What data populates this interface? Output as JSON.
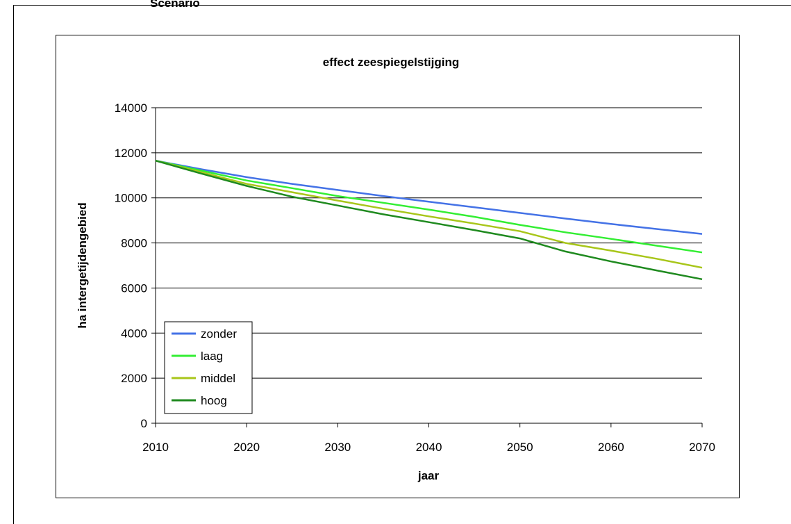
{
  "page": {
    "cut_heading": "Scenario"
  },
  "chart_data": {
    "type": "line",
    "title": "effect zeespiegelstijging",
    "xlabel": "jaar",
    "ylabel": "ha intergetijdengebied",
    "xlim": [
      2010,
      2070
    ],
    "ylim": [
      0,
      14000
    ],
    "x_ticks": [
      "2010",
      "2020",
      "2030",
      "2040",
      "2050",
      "2060",
      "2070"
    ],
    "y_ticks": [
      "0",
      "2000",
      "4000",
      "6000",
      "8000",
      "10000",
      "12000",
      "14000"
    ],
    "grid": "horizontal",
    "legend_position": "bottom-left",
    "series": [
      {
        "name": "zonder",
        "color": "#4472e6",
        "x": [
          2010,
          2015,
          2020,
          2025,
          2030,
          2035,
          2040,
          2045,
          2050,
          2055,
          2060,
          2065,
          2070
        ],
        "values": [
          11650,
          11270,
          10920,
          10620,
          10350,
          10080,
          9830,
          9580,
          9330,
          9080,
          8840,
          8620,
          8400
        ]
      },
      {
        "name": "laag",
        "color": "#33ee33",
        "x": [
          2010,
          2015,
          2020,
          2025,
          2030,
          2035,
          2040,
          2045,
          2050,
          2055,
          2060,
          2065,
          2070
        ],
        "values": [
          11650,
          11210,
          10770,
          10430,
          10080,
          9780,
          9480,
          9160,
          8800,
          8470,
          8180,
          7880,
          7580
        ]
      },
      {
        "name": "middel",
        "color": "#a8c61a",
        "x": [
          2010,
          2015,
          2020,
          2025,
          2030,
          2035,
          2040,
          2045,
          2050,
          2055,
          2060,
          2065,
          2070
        ],
        "values": [
          11650,
          11140,
          10620,
          10250,
          9880,
          9520,
          9180,
          8860,
          8520,
          8000,
          7660,
          7300,
          6900
        ]
      },
      {
        "name": "hoog",
        "color": "#1f8a1f",
        "x": [
          2010,
          2015,
          2020,
          2025,
          2030,
          2035,
          2040,
          2045,
          2050,
          2055,
          2060,
          2065,
          2070
        ],
        "values": [
          11650,
          11080,
          10530,
          10050,
          9660,
          9270,
          8920,
          8570,
          8200,
          7620,
          7180,
          6780,
          6390
        ]
      }
    ]
  }
}
